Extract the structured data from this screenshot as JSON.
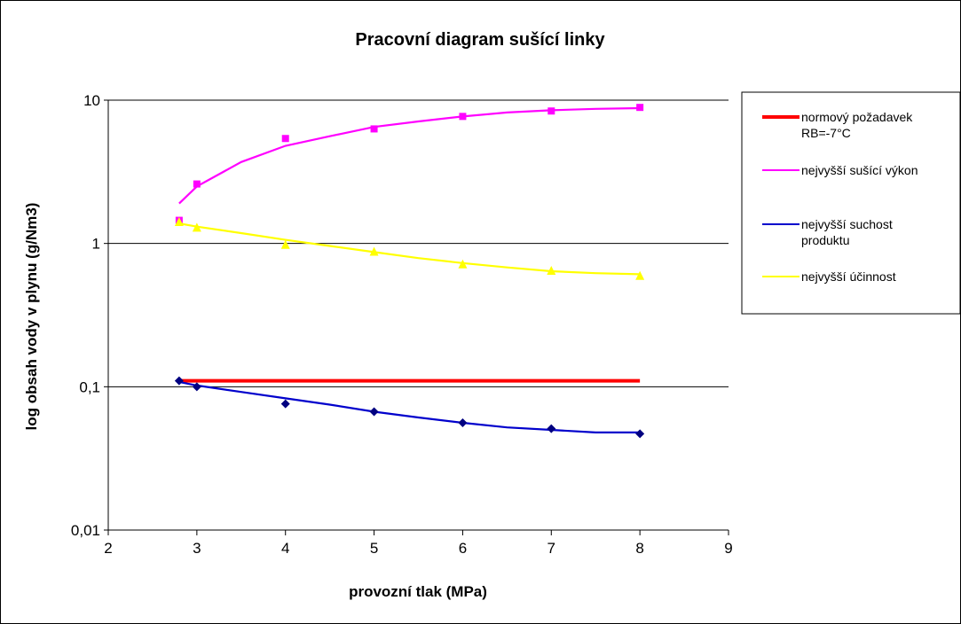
{
  "chart_data": {
    "type": "scatter",
    "title": "Pracovní diagram sušící linky",
    "xlabel": "provozní tlak (MPa)",
    "ylabel": "log obsah vody v plynu (g/Nm3)",
    "xlim": [
      2,
      9
    ],
    "ylim": [
      0.01,
      10
    ],
    "yscale": "log",
    "x_ticks": [
      "2",
      "3",
      "4",
      "5",
      "6",
      "7",
      "8",
      "9"
    ],
    "y_ticks": [
      "0,01",
      "0,1",
      "1",
      "10"
    ],
    "grid": "horizontal major",
    "legend_position": "right",
    "series": [
      {
        "name": "normový požadavek RB=-7°C",
        "color": "#ff0000",
        "marker": "none",
        "points": [
          [
            2.8,
            0.11
          ],
          [
            8,
            0.11
          ]
        ],
        "trend": []
      },
      {
        "name": "nejvyšší sušící výkon",
        "color": "#ff00ff",
        "marker": "square",
        "points": [
          [
            2.8,
            1.45
          ],
          [
            3,
            2.6
          ],
          [
            4,
            5.4
          ],
          [
            5,
            6.3
          ],
          [
            6,
            7.7
          ],
          [
            7,
            8.4
          ],
          [
            8,
            8.9
          ]
        ],
        "trend": [
          [
            2.8,
            1.9
          ],
          [
            3,
            2.5
          ],
          [
            3.5,
            3.7
          ],
          [
            4,
            4.8
          ],
          [
            4.5,
            5.6
          ],
          [
            5,
            6.5
          ],
          [
            5.5,
            7.1
          ],
          [
            6,
            7.7
          ],
          [
            6.5,
            8.2
          ],
          [
            7,
            8.5
          ],
          [
            7.5,
            8.7
          ],
          [
            8,
            8.8
          ]
        ]
      },
      {
        "name": "nejvyšší suchost produktu",
        "color": "#0000cc",
        "marker": "diamond",
        "points": [
          [
            2.8,
            0.11
          ],
          [
            3,
            0.1
          ],
          [
            4,
            0.076
          ],
          [
            5,
            0.067
          ],
          [
            6,
            0.056
          ],
          [
            7,
            0.051
          ],
          [
            8,
            0.047
          ]
        ],
        "trend": [
          [
            2.8,
            0.108
          ],
          [
            3,
            0.102
          ],
          [
            3.5,
            0.092
          ],
          [
            4,
            0.083
          ],
          [
            4.5,
            0.075
          ],
          [
            5,
            0.067
          ],
          [
            5.5,
            0.061
          ],
          [
            6,
            0.056
          ],
          [
            6.5,
            0.052
          ],
          [
            7,
            0.05
          ],
          [
            7.5,
            0.048
          ],
          [
            8,
            0.048
          ]
        ]
      },
      {
        "name": "nejvyšší účinnost",
        "color": "#ffff00",
        "marker": "triangle",
        "points": [
          [
            2.8,
            1.4
          ],
          [
            3,
            1.28
          ],
          [
            4,
            0.97
          ],
          [
            5,
            0.87
          ],
          [
            6,
            0.71
          ],
          [
            7,
            0.64
          ],
          [
            8,
            0.59
          ]
        ],
        "trend": [
          [
            2.8,
            1.38
          ],
          [
            3,
            1.31
          ],
          [
            3.5,
            1.18
          ],
          [
            4,
            1.06
          ],
          [
            4.5,
            0.96
          ],
          [
            5,
            0.87
          ],
          [
            5.5,
            0.79
          ],
          [
            6,
            0.73
          ],
          [
            6.5,
            0.68
          ],
          [
            7,
            0.64
          ],
          [
            7.5,
            0.62
          ],
          [
            8,
            0.61
          ]
        ]
      }
    ]
  },
  "legend": {
    "items": [
      {
        "line1": "normový požadavek",
        "line2": "RB=-7°C",
        "color": "#ff0000"
      },
      {
        "line1": "nejvyšší sušící výkon",
        "line2": "",
        "color": "#ff00ff"
      },
      {
        "line1": "nejvyšší suchost",
        "line2": "produktu",
        "color": "#0000cc"
      },
      {
        "line1": "nejvyšší účinnost",
        "line2": "",
        "color": "#ffff00"
      }
    ]
  }
}
